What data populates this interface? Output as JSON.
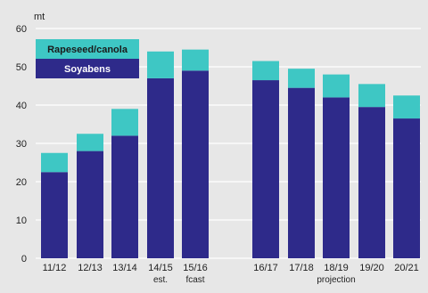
{
  "chart_data": {
    "type": "bar",
    "stacked": true,
    "unit_label": "mt",
    "categories": [
      "11/12",
      "12/13",
      "13/14",
      "14/15",
      "15/16",
      "16/17",
      "17/18",
      "18/19",
      "19/20",
      "20/21"
    ],
    "sublabels": {
      "14/15": "est.",
      "15/16": "fcast",
      "18/19": "projection"
    },
    "series": [
      {
        "name": "Soyabens",
        "color": "#2e2a8a",
        "values": [
          22.5,
          28,
          32,
          47,
          49,
          46.5,
          44.5,
          42,
          39.5,
          36.5
        ]
      },
      {
        "name": "Rapeseed/canola",
        "color": "#3ec7c4",
        "values": [
          5,
          4.5,
          7,
          7,
          5.5,
          5,
          5,
          6,
          6,
          6
        ]
      }
    ],
    "ylim": [
      0,
      60
    ],
    "yticks": [
      0,
      10,
      20,
      30,
      40,
      50,
      60
    ],
    "grid": true,
    "legend": {
      "position": "top-left",
      "order": [
        "Rapeseed/canola",
        "Soyabens"
      ]
    }
  }
}
